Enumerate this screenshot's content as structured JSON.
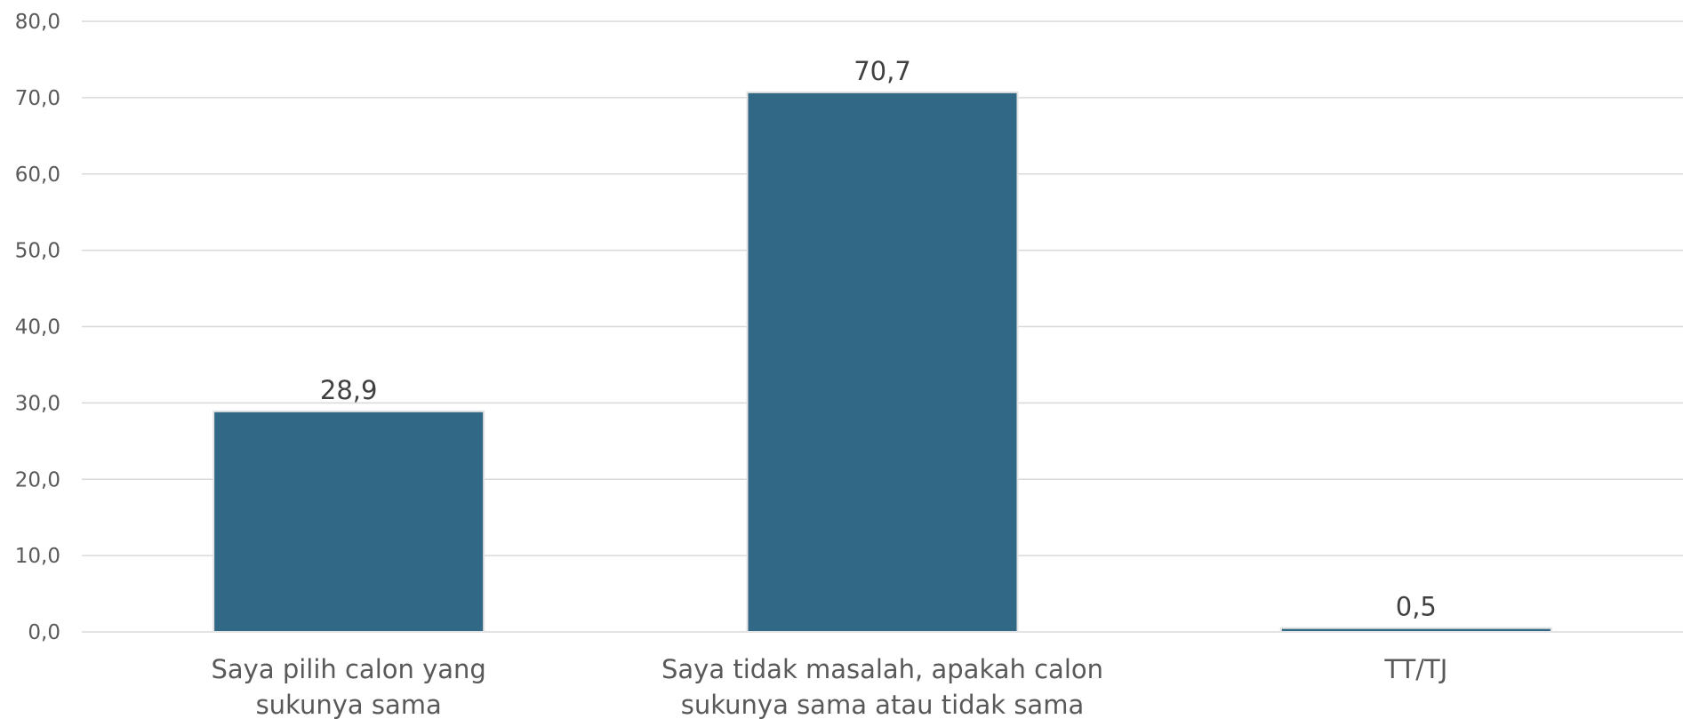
{
  "chart_data": {
    "type": "bar",
    "categories": [
      [
        "Saya pilih calon yang",
        "sukunya sama"
      ],
      [
        "Saya tidak masalah, apakah calon",
        "sukunya sama atau tidak sama"
      ],
      [
        "TT/TJ"
      ]
    ],
    "values": [
      28.9,
      70.7,
      0.5
    ],
    "value_labels": [
      "28,9",
      "70,7",
      "0,5"
    ],
    "ylim": [
      0,
      80
    ],
    "yticks": [
      0,
      10,
      20,
      30,
      40,
      50,
      60,
      70,
      80
    ],
    "ytick_labels": [
      "0,0",
      "10,0",
      "20,0",
      "30,0",
      "40,0",
      "50,0",
      "60,0",
      "70,0",
      "80,0"
    ],
    "grid": true,
    "title": "",
    "xlabel": "",
    "ylabel": "",
    "bar_color": "#306885",
    "grid_color": "#d9d9d9"
  }
}
